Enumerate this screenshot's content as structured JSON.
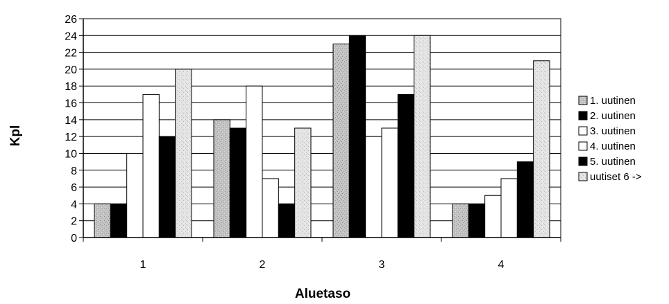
{
  "chart_data": {
    "type": "bar",
    "title": "",
    "xlabel": "Aluetaso",
    "ylabel": "Kpl",
    "categories": [
      "1",
      "2",
      "3",
      "4"
    ],
    "series": [
      {
        "name": "1. uutinen",
        "values": [
          4,
          14,
          23,
          4
        ],
        "color": "#c8c8c8",
        "pattern": "speckle"
      },
      {
        "name": "2. uutinen",
        "values": [
          4,
          13,
          24,
          4
        ],
        "color": "#000000",
        "pattern": "solid"
      },
      {
        "name": "3. uutinen",
        "values": [
          10,
          18,
          12,
          5
        ],
        "color": "#ffffff",
        "pattern": "solid"
      },
      {
        "name": "4. uutinen",
        "values": [
          17,
          7,
          13,
          7
        ],
        "color": "#ffffff",
        "pattern": "solid"
      },
      {
        "name": "5. uutinen",
        "values": [
          12,
          4,
          17,
          9
        ],
        "color": "#000000",
        "pattern": "solid"
      },
      {
        "name": "uutiset 6 ->",
        "values": [
          20,
          13,
          24,
          21
        ],
        "color": "#e2e2e2",
        "pattern": "speckle-light"
      }
    ],
    "ylim": [
      0,
      26
    ],
    "yticks": [
      0,
      2,
      4,
      6,
      8,
      10,
      12,
      14,
      16,
      18,
      20,
      22,
      24,
      26
    ],
    "grid": true,
    "legend": "right"
  }
}
